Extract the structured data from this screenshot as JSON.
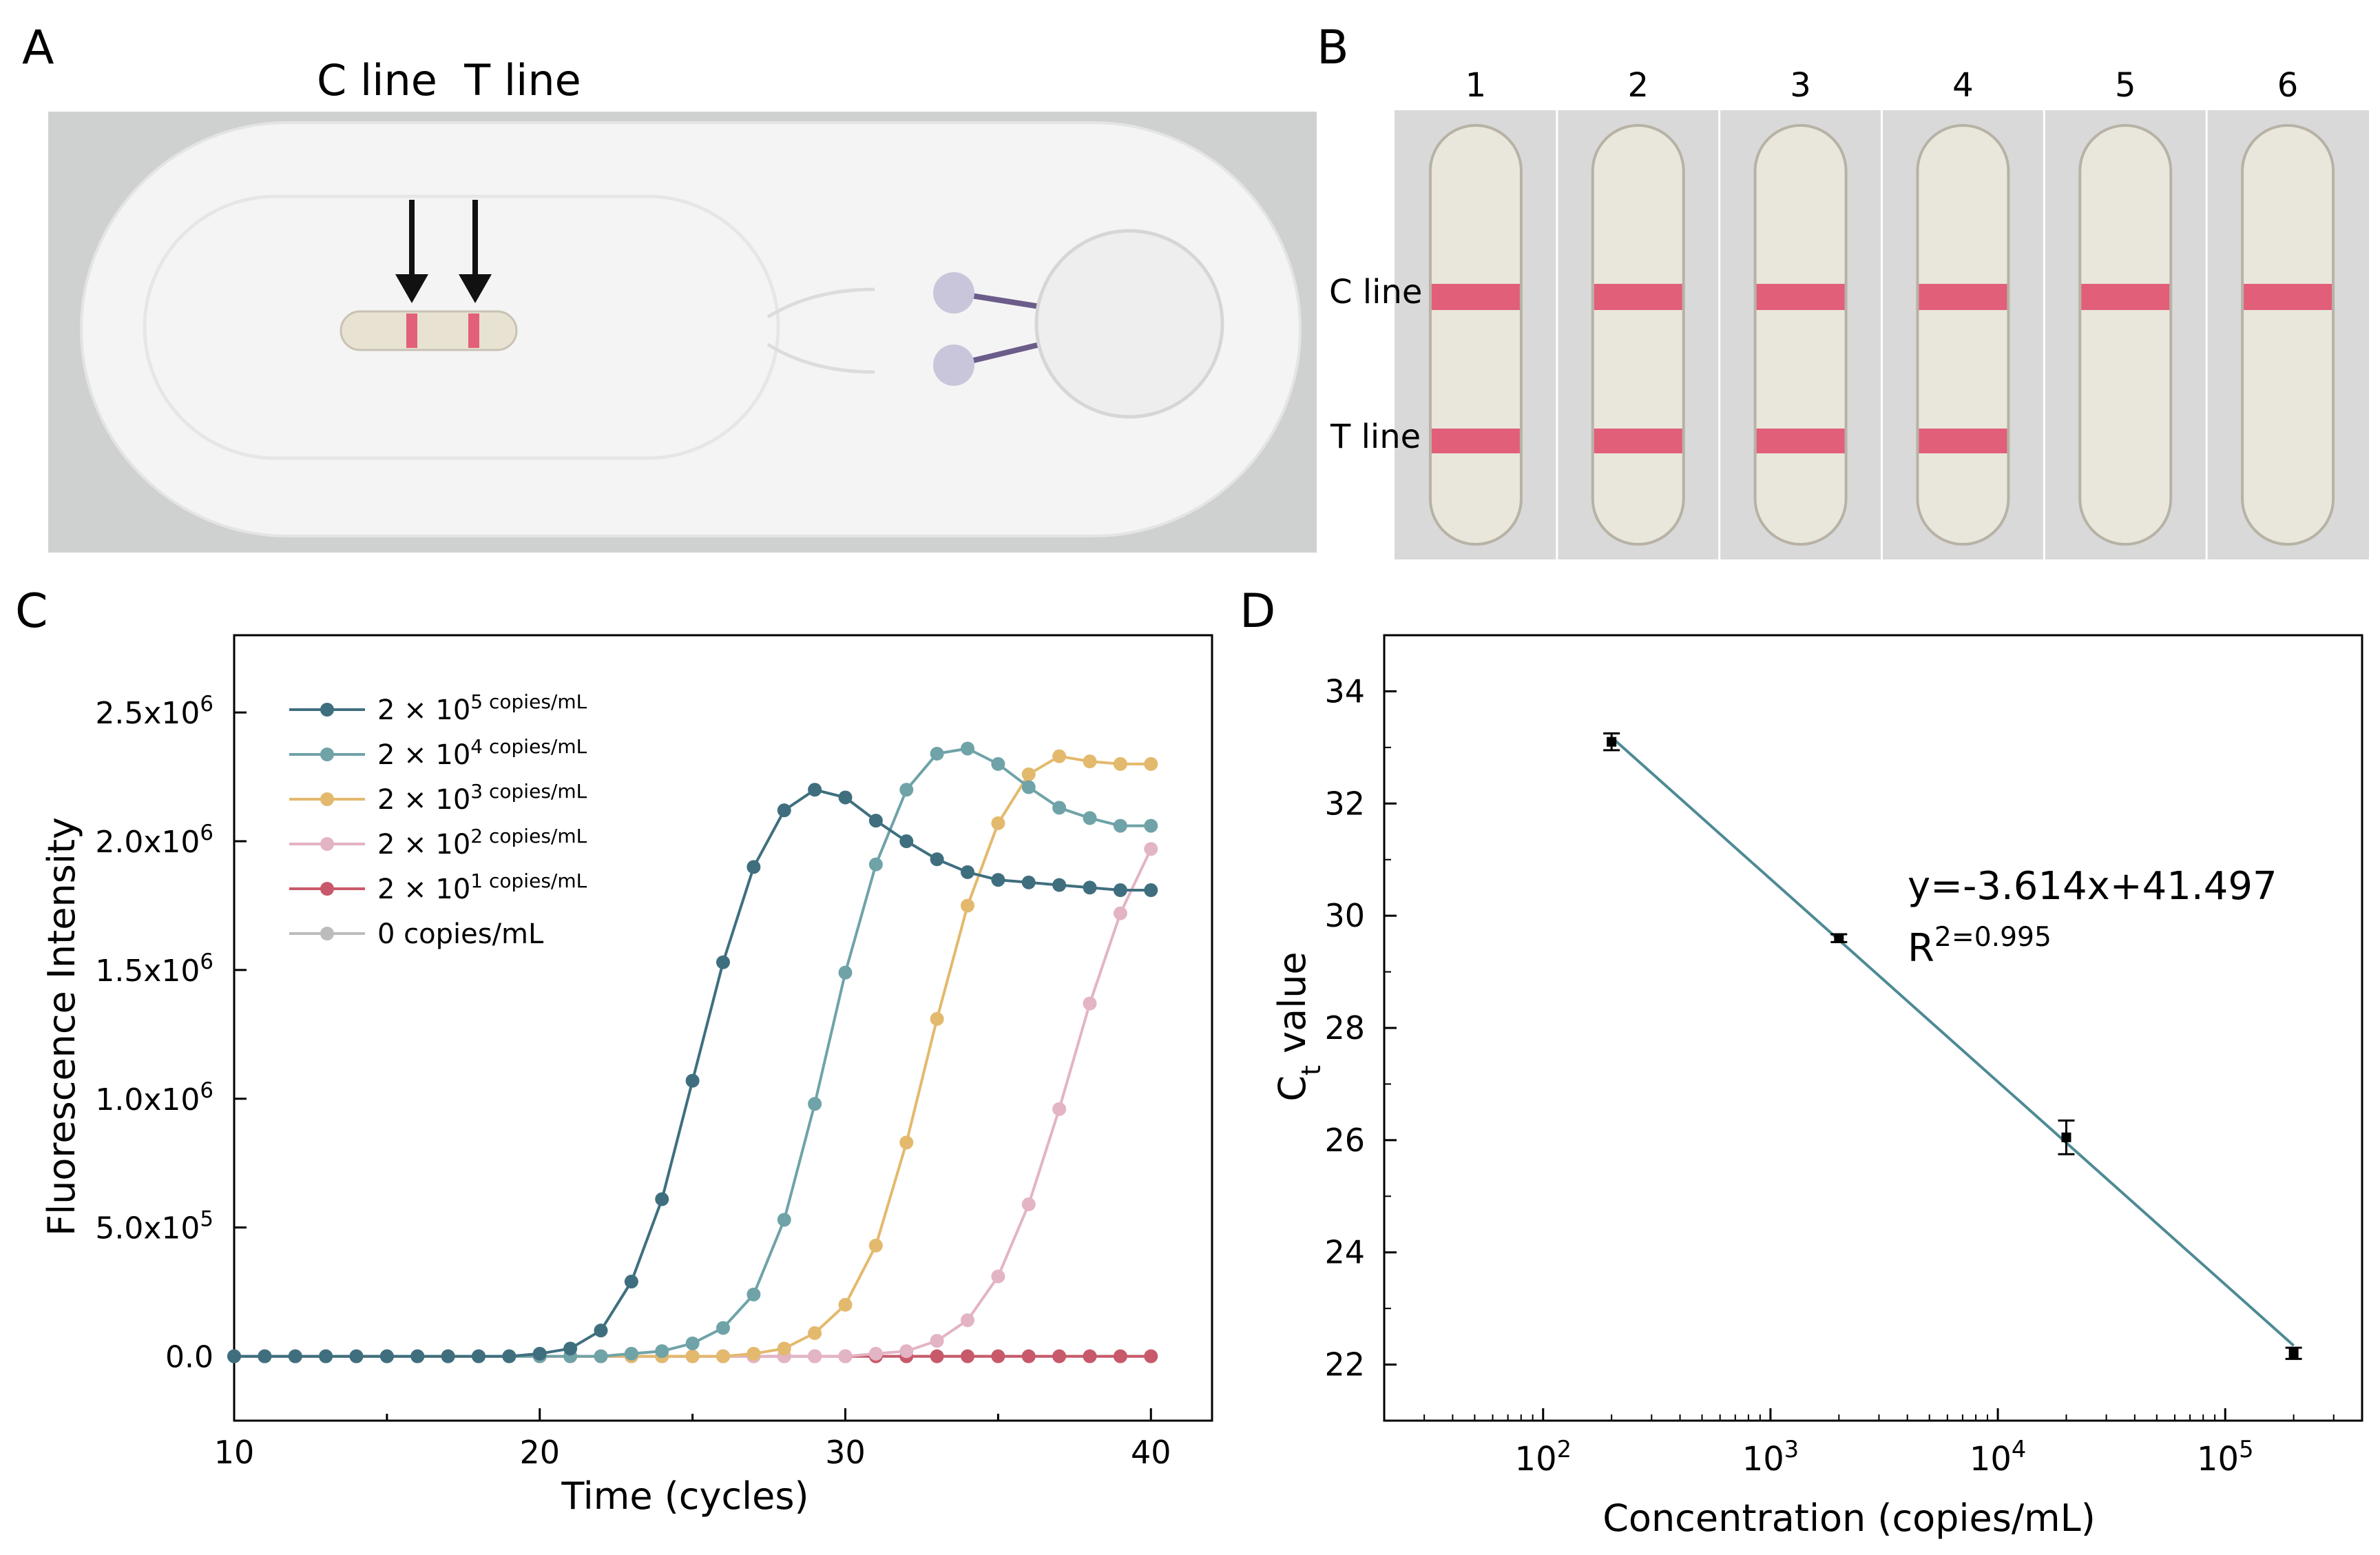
{
  "panels": {
    "a": {
      "letter": "A",
      "header": "C line  T line",
      "device_colors": {
        "body": "#f3f3f3",
        "background": "#cfd1d1",
        "line": "#e2607a",
        "knob": "#c9c6dc"
      }
    },
    "b": {
      "letter": "B",
      "strip_numbers": [
        "1",
        "2",
        "3",
        "4",
        "5",
        "6"
      ],
      "c_line_label": "C line",
      "t_line_label": "T line",
      "t_line_visible": [
        true,
        true,
        true,
        true,
        false,
        false
      ],
      "strip_colors": {
        "background": "#d9d9d9",
        "strip": "#e9e7db",
        "line": "#e0506e"
      }
    },
    "c": {
      "letter": "C"
    },
    "d": {
      "letter": "D"
    }
  },
  "chart_data": [
    {
      "type": "line",
      "panel": "C",
      "xlabel": "Time (cycles)",
      "ylabel": "Fluorescence Intensity",
      "xlim": [
        10,
        42
      ],
      "ylim": [
        -250000,
        2800000
      ],
      "x_ticks": [
        "10",
        "20",
        "30",
        "40"
      ],
      "y_ticks": [
        {
          "value": 0,
          "label": "0.0"
        },
        {
          "value": 500000,
          "label": "5.0x10^5"
        },
        {
          "value": 1000000,
          "label": "1.0x10^6"
        },
        {
          "value": 1500000,
          "label": "1.5x10^6"
        },
        {
          "value": 2000000,
          "label": "2.0x10^6"
        },
        {
          "value": 2500000,
          "label": "2.5x10^6"
        }
      ],
      "legend_position": "top-left",
      "x": [
        10,
        11,
        12,
        13,
        14,
        15,
        16,
        17,
        18,
        19,
        20,
        21,
        22,
        23,
        24,
        25,
        26,
        27,
        28,
        29,
        30,
        31,
        32,
        33,
        34,
        35,
        36,
        37,
        38,
        39,
        40
      ],
      "series": [
        {
          "name": "2 × 10^5 copies/mL",
          "color": "#3f6f7f",
          "values": [
            0,
            0,
            0,
            0,
            0,
            0,
            0,
            0,
            0,
            0,
            10000,
            30000,
            100000,
            290000,
            610000,
            1070000,
            1530000,
            1900000,
            2120000,
            2200000,
            2170000,
            2080000,
            2000000,
            1930000,
            1880000,
            1850000,
            1840000,
            1830000,
            1820000,
            1810000,
            1810000
          ]
        },
        {
          "name": "2 × 10^4 copies/mL",
          "color": "#6fa3a8",
          "values": [
            0,
            0,
            0,
            0,
            0,
            0,
            0,
            0,
            0,
            0,
            0,
            0,
            0,
            10000,
            20000,
            50000,
            110000,
            240000,
            530000,
            980000,
            1490000,
            1910000,
            2200000,
            2340000,
            2360000,
            2300000,
            2210000,
            2130000,
            2090000,
            2060000,
            2060000
          ]
        },
        {
          "name": "2 × 10^3 copies/mL",
          "color": "#e3b96d",
          "values": [
            0,
            0,
            0,
            0,
            0,
            0,
            0,
            0,
            0,
            0,
            0,
            0,
            0,
            0,
            0,
            0,
            0,
            10000,
            30000,
            90000,
            200000,
            430000,
            830000,
            1310000,
            1750000,
            2070000,
            2260000,
            2330000,
            2310000,
            2300000,
            2300000
          ]
        },
        {
          "name": "2 × 10^2 copies/mL",
          "color": "#e3b4c4",
          "values": [
            0,
            0,
            0,
            0,
            0,
            0,
            0,
            0,
            0,
            0,
            0,
            0,
            0,
            0,
            0,
            0,
            0,
            0,
            0,
            0,
            0,
            10000,
            20000,
            60000,
            140000,
            310000,
            590000,
            960000,
            1370000,
            1720000,
            1970000
          ]
        },
        {
          "name": "2 × 10^1 copies/mL",
          "color": "#c8596a",
          "values": [
            0,
            0,
            0,
            0,
            0,
            0,
            0,
            0,
            0,
            0,
            0,
            0,
            0,
            0,
            0,
            0,
            0,
            0,
            0,
            0,
            0,
            0,
            0,
            0,
            0,
            0,
            0,
            0,
            0,
            0,
            0
          ]
        },
        {
          "name": "0 copies/mL",
          "color": "#bcbcbc",
          "values": [
            0,
            0,
            0,
            0,
            0,
            0,
            0,
            0,
            0,
            0,
            0,
            0,
            0,
            0,
            0,
            0,
            0,
            0,
            0,
            0,
            0,
            0,
            0,
            0,
            0,
            0,
            0,
            0,
            0,
            0,
            0
          ]
        }
      ]
    },
    {
      "type": "scatter",
      "panel": "D",
      "xlabel": "Concentration (copies/mL)",
      "ylabel": "Ct value",
      "x_scale": "log",
      "xlim": [
        20,
        400000
      ],
      "ylim": [
        21,
        35
      ],
      "x_ticks": [
        {
          "value": 100,
          "label": "10^2"
        },
        {
          "value": 1000,
          "label": "10^3"
        },
        {
          "value": 10000,
          "label": "10^4"
        },
        {
          "value": 100000,
          "label": "10^5"
        }
      ],
      "y_ticks": [
        22,
        24,
        26,
        28,
        30,
        32,
        34
      ],
      "points": [
        {
          "x": 200,
          "y": 33.1,
          "err": 0.15
        },
        {
          "x": 2000,
          "y": 29.6,
          "err": 0.07
        },
        {
          "x": 20000,
          "y": 26.05,
          "err": 0.3
        },
        {
          "x": 200000,
          "y": 22.2,
          "err": 0.1
        }
      ],
      "fit": {
        "slope": -3.614,
        "intercept": 41.497,
        "color": "#4d8a94",
        "x_from": 200,
        "x_to": 200000
      },
      "equation": "y=-3.614x+41.497",
      "r_squared": "R^2=0.995"
    }
  ]
}
